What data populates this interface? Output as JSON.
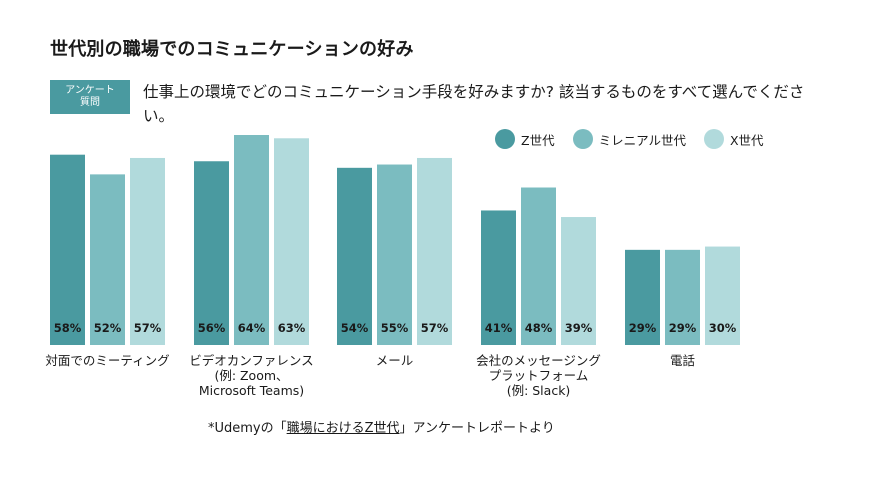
{
  "title": "世代別の職場でのコミュニケーションの好み",
  "badge": {
    "line1": "アンケート",
    "line2": "質問"
  },
  "question": "仕事上の環境でどのコミュニケーション手段を好みますか? 該当するものをすべて選んでください。",
  "colors": {
    "z": "#4a9aa0",
    "millennial": "#7bbcc0",
    "x": "#b1dadc",
    "badge": "#4a9aa0"
  },
  "footnote": {
    "prefix": "*Udemyの「",
    "link": "職場におけるZ世代",
    "suffix": "」アンケートレポートより"
  },
  "chart_data": {
    "type": "bar",
    "title": "世代別の職場でのコミュニケーションの好み",
    "categories": [
      "対面でのミーティング",
      "ビデオカンファレンス\n(例: Zoom、\nMicrosoft Teams)",
      "メール",
      "会社のメッセージング\nプラットフォーム\n(例: Slack)",
      "電話"
    ],
    "series": [
      {
        "name": "Z世代",
        "values": [
          58,
          56,
          54,
          41,
          29
        ],
        "color": "#4a9aa0"
      },
      {
        "name": "ミレニアル世代",
        "values": [
          52,
          64,
          55,
          48,
          29
        ],
        "color": "#7bbcc0"
      },
      {
        "name": "X世代",
        "values": [
          57,
          63,
          57,
          39,
          30
        ],
        "color": "#b1dadc"
      }
    ],
    "unit": "%",
    "legend_position": "top-right",
    "grid": false,
    "ylim": [
      0,
      64
    ]
  }
}
